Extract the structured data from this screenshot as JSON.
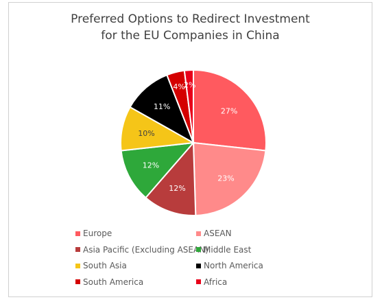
{
  "chart_data": {
    "type": "pie",
    "title": "Preferred Options to Redirect Investment for the EU Companies in China",
    "title_lines": [
      "Preferred Options to Redirect Investment",
      "for the EU Companies in China"
    ],
    "slices": [
      {
        "name": "Europe",
        "value": 27,
        "label": "27%",
        "color": "#ff5a5f"
      },
      {
        "name": "ASEAN",
        "value": 23,
        "label": "23%",
        "color": "#ff8a8a"
      },
      {
        "name": "Asia Pacific (Excluding ASEAN)",
        "value": 12,
        "label": "12%",
        "color": "#b83c3c"
      },
      {
        "name": "Middle East",
        "value": 12,
        "label": "12%",
        "color": "#2ea83a"
      },
      {
        "name": "South Asia",
        "value": 10,
        "label": "10%",
        "color": "#f5c518"
      },
      {
        "name": "North America",
        "value": 11,
        "label": "11%",
        "color": "#000000"
      },
      {
        "name": "South America",
        "value": 4,
        "label": "4%",
        "color": "#d40000"
      },
      {
        "name": "Africa",
        "value": 2,
        "label": "2%",
        "color": "#e8001a"
      }
    ],
    "legend_position": "bottom"
  }
}
